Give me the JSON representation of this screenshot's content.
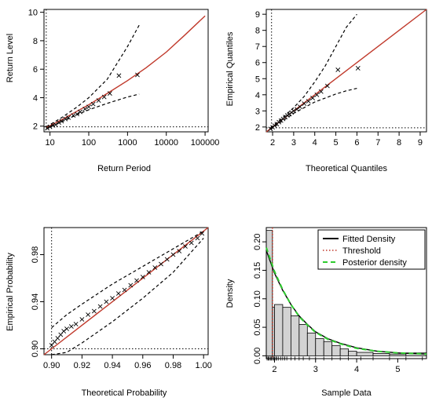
{
  "chart_data": [
    {
      "type": "line",
      "panel": "return-level",
      "xlabel": "Return Period",
      "ylabel": "Return Level",
      "x_scale": "log",
      "xlim": [
        7,
        120000
      ],
      "ylim": [
        1.6,
        10.2
      ],
      "x_ticks": [
        10,
        100,
        1000,
        10000,
        100000
      ],
      "x_tick_labels": [
        "10",
        "100",
        "1000",
        "10000",
        "100000"
      ],
      "y_ticks": [
        2,
        4,
        6,
        8,
        10
      ],
      "threshold_x": 8,
      "threshold_y": 1.95,
      "fitted": {
        "x": [
          8,
          20,
          50,
          100,
          300,
          1000,
          3000,
          10000,
          30000,
          100000
        ],
        "y": [
          1.9,
          2.45,
          3.05,
          3.5,
          4.3,
          5.2,
          6.1,
          7.2,
          8.4,
          9.75
        ]
      },
      "upper_band": {
        "x": [
          8,
          20,
          50,
          100,
          300,
          1000,
          2000
        ],
        "y": [
          1.95,
          2.6,
          3.35,
          4.0,
          5.3,
          7.6,
          9.1
        ]
      },
      "lower_band": {
        "x": [
          8,
          20,
          50,
          100,
          300,
          1000,
          2000
        ],
        "y": [
          1.85,
          2.3,
          2.8,
          3.15,
          3.6,
          4.05,
          4.25
        ]
      },
      "points": {
        "x": [
          8.5,
          10,
          12,
          14,
          17,
          20,
          25,
          30,
          40,
          50,
          60,
          80,
          100,
          130,
          180,
          250,
          350,
          600,
          1800
        ],
        "y": [
          1.85,
          1.95,
          2.05,
          2.1,
          2.25,
          2.35,
          2.5,
          2.6,
          2.75,
          2.85,
          3.0,
          3.2,
          3.35,
          3.55,
          3.8,
          4.05,
          4.3,
          5.55,
          5.6
        ]
      }
    },
    {
      "type": "scatter",
      "panel": "qq-plot",
      "xlabel": "Theoretical Quantiles",
      "ylabel": "Empirical Quantiles",
      "xlim": [
        1.7,
        9.3
      ],
      "ylim": [
        1.7,
        9.3
      ],
      "x_ticks": [
        2,
        3,
        4,
        5,
        6,
        7,
        8,
        9
      ],
      "y_ticks": [
        2,
        3,
        4,
        5,
        6,
        7,
        8,
        9
      ],
      "threshold_x": 1.95,
      "threshold_y": 1.95,
      "identity_line": [
        [
          1.7,
          1.7
        ],
        [
          9.3,
          9.3
        ]
      ],
      "upper_band": {
        "x": [
          1.9,
          2.5,
          3.0,
          3.5,
          4.0,
          4.5,
          5.0,
          5.5,
          6.0
        ],
        "y": [
          1.95,
          2.6,
          3.2,
          3.9,
          4.8,
          5.8,
          7.0,
          8.2,
          9.0
        ]
      },
      "lower_band": {
        "x": [
          1.9,
          2.5,
          3.0,
          3.5,
          4.0,
          4.5,
          5.0,
          5.5,
          6.0
        ],
        "y": [
          1.85,
          2.4,
          2.85,
          3.2,
          3.55,
          3.8,
          4.05,
          4.25,
          4.4
        ]
      },
      "points": {
        "x": [
          1.9,
          2.0,
          2.1,
          2.2,
          2.3,
          2.4,
          2.5,
          2.6,
          2.7,
          2.8,
          2.9,
          3.0,
          3.15,
          3.3,
          3.5,
          3.7,
          3.9,
          4.1,
          4.3,
          4.6,
          5.1,
          6.05
        ],
        "y": [
          1.88,
          1.98,
          2.08,
          2.18,
          2.3,
          2.4,
          2.5,
          2.62,
          2.72,
          2.8,
          2.9,
          3.0,
          3.1,
          3.25,
          3.45,
          3.6,
          3.8,
          4.0,
          4.2,
          4.55,
          5.55,
          5.65
        ]
      }
    },
    {
      "type": "scatter",
      "panel": "pp-plot",
      "xlabel": "Theoretical Probability",
      "ylabel": "Empirical Probability",
      "xlim": [
        0.895,
        1.003
      ],
      "ylim": [
        0.895,
        1.003
      ],
      "x_ticks": [
        0.9,
        0.92,
        0.94,
        0.96,
        0.98,
        1.0
      ],
      "x_tick_labels": [
        "0.90",
        "0.92",
        "0.94",
        "0.96",
        "0.98",
        "1.00"
      ],
      "y_ticks": [
        0.9,
        0.94,
        0.98
      ],
      "y_tick_labels": [
        "0.90",
        "0.94",
        "0.98"
      ],
      "threshold_x": 0.9,
      "threshold_y": 0.9,
      "identity_line": [
        [
          0.895,
          0.895
        ],
        [
          1.003,
          1.003
        ]
      ],
      "upper_band": {
        "x": [
          0.9,
          0.91,
          0.92,
          0.94,
          0.96,
          0.98,
          1.0
        ],
        "y": [
          0.918,
          0.929,
          0.938,
          0.955,
          0.97,
          0.985,
          1.0
        ]
      },
      "lower_band": {
        "x": [
          0.9,
          0.91,
          0.92,
          0.94,
          0.96,
          0.98,
          1.0
        ],
        "y": [
          0.895,
          0.897,
          0.905,
          0.923,
          0.943,
          0.965,
          0.994
        ]
      },
      "points": {
        "x": [
          0.9,
          0.902,
          0.904,
          0.906,
          0.908,
          0.91,
          0.913,
          0.916,
          0.92,
          0.924,
          0.928,
          0.932,
          0.936,
          0.94,
          0.944,
          0.948,
          0.952,
          0.956,
          0.96,
          0.964,
          0.968,
          0.972,
          0.976,
          0.98,
          0.984,
          0.988,
          0.992,
          0.996,
          0.999
        ],
        "y": [
          0.903,
          0.906,
          0.909,
          0.912,
          0.915,
          0.917,
          0.919,
          0.921,
          0.925,
          0.929,
          0.932,
          0.936,
          0.94,
          0.943,
          0.947,
          0.95,
          0.954,
          0.958,
          0.961,
          0.965,
          0.969,
          0.972,
          0.976,
          0.98,
          0.983,
          0.987,
          0.99,
          0.994,
          0.998
        ]
      }
    },
    {
      "type": "bar",
      "panel": "density",
      "xlabel": "Sample Data",
      "ylabel": "Density",
      "xlim": [
        1.8,
        5.7
      ],
      "ylim": [
        -0.005,
        0.225
      ],
      "x_ticks": [
        2,
        3,
        4,
        5
      ],
      "y_ticks": [
        0.0,
        0.05,
        0.1,
        0.15,
        0.2
      ],
      "y_tick_labels": [
        "0.00",
        "0.05",
        "0.10",
        "0.15",
        "0.20"
      ],
      "bin_edges": [
        1.8,
        1.95,
        2.0,
        2.2,
        2.4,
        2.6,
        2.8,
        3.0,
        3.2,
        3.4,
        3.6,
        3.8,
        4.0,
        4.4,
        4.8,
        5.2,
        5.7
      ],
      "bin_heights": [
        0.22,
        0.085,
        0.09,
        0.085,
        0.07,
        0.055,
        0.04,
        0.03,
        0.025,
        0.018,
        0.012,
        0.008,
        0.006,
        0.004,
        0.003,
        0.005
      ],
      "threshold": 1.95,
      "fitted_density": {
        "x": [
          1.8,
          2.0,
          2.2,
          2.4,
          2.6,
          2.8,
          3.0,
          3.3,
          3.6,
          4.0,
          4.5,
          5.0,
          5.7
        ],
        "y": [
          0.185,
          0.145,
          0.115,
          0.09,
          0.07,
          0.055,
          0.042,
          0.03,
          0.022,
          0.014,
          0.008,
          0.005,
          0.003
        ]
      },
      "posterior_density": {
        "x": [
          1.8,
          2.0,
          2.2,
          2.4,
          2.6,
          2.8,
          3.0,
          3.3,
          3.6,
          4.0,
          4.5,
          5.0,
          5.7
        ],
        "y": [
          0.19,
          0.148,
          0.116,
          0.09,
          0.069,
          0.054,
          0.041,
          0.029,
          0.021,
          0.013,
          0.008,
          0.005,
          0.003
        ]
      },
      "rug": [
        1.82,
        1.85,
        1.87,
        1.9,
        1.92,
        1.95,
        1.98,
        2.0,
        2.03,
        2.06,
        2.1,
        2.15,
        2.2,
        2.25,
        2.3,
        2.4,
        2.5,
        2.6,
        2.7,
        2.85,
        3.0,
        3.2,
        3.4,
        3.6,
        3.8,
        4.1,
        4.4,
        4.8,
        5.2,
        5.6
      ],
      "legend": {
        "position": "top-right",
        "fitted_label": "Fitted Density",
        "threshold_label": "Threshold",
        "posterior_label": "Posterior density"
      },
      "colors": {
        "fitted": "#000000",
        "threshold": "#c0392b",
        "posterior": "#2ecc2e"
      }
    }
  ]
}
